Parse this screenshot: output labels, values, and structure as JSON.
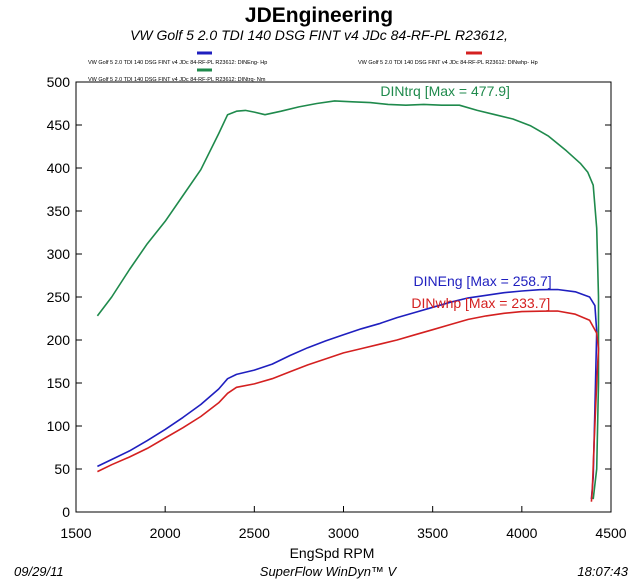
{
  "header": {
    "title": "JDEngineering",
    "subtitle": "VW Golf 5  2.0 TDI 140   DSG   FINT v4   JDc     84-RF-PL    R23612,"
  },
  "legend": [
    {
      "text": "VW Golf 5  2.0 TDI 140   DSG   FINT v4   JDc      84-RF-PL    R23612: DINEng- Hp",
      "color": "#1f1fbf"
    },
    {
      "text": "VW Golf 5  2.0 TDI 140   DSG   FINT v4   JDc      84-RF-PL    R23612: DINwhp- Hp",
      "color": "#d42020"
    },
    {
      "text": "VW Golf 5  2.0 TDI 140   DSG   FINT v4   JDc      84-RF-PL    R23612: DINtrq- Nm",
      "color": "#1f8a4c"
    }
  ],
  "footer": {
    "date": "09/29/11",
    "software": "SuperFlow WinDyn™ V",
    "time": "18:07:43"
  },
  "chart_data": {
    "type": "line",
    "xlabel": "EngSpd  RPM",
    "ylabel": "",
    "xlim": [
      1500,
      4500
    ],
    "ylim": [
      0,
      500
    ],
    "x_ticks": [
      "1500",
      "2000",
      "2500",
      "3000",
      "3500",
      "4000",
      "4500"
    ],
    "y_ticks": [
      "0",
      "50",
      "100",
      "150",
      "200",
      "250",
      "300",
      "350",
      "400",
      "450",
      "500"
    ],
    "grid": false,
    "series": [
      {
        "name": "DINtrq",
        "annotation": "DINtrq [Max = 477.9]",
        "color": "#1f8a4c",
        "points": [
          [
            1620,
            228
          ],
          [
            1700,
            250
          ],
          [
            1800,
            282
          ],
          [
            1900,
            312
          ],
          [
            2000,
            338
          ],
          [
            2100,
            368
          ],
          [
            2200,
            398
          ],
          [
            2300,
            440
          ],
          [
            2350,
            462
          ],
          [
            2400,
            466
          ],
          [
            2450,
            467
          ],
          [
            2500,
            465
          ],
          [
            2560,
            462
          ],
          [
            2650,
            466
          ],
          [
            2750,
            471
          ],
          [
            2850,
            475
          ],
          [
            2950,
            478
          ],
          [
            3050,
            477
          ],
          [
            3150,
            476
          ],
          [
            3250,
            474
          ],
          [
            3350,
            473
          ],
          [
            3450,
            474
          ],
          [
            3550,
            473
          ],
          [
            3650,
            473
          ],
          [
            3750,
            467
          ],
          [
            3850,
            462
          ],
          [
            3950,
            457
          ],
          [
            4050,
            449
          ],
          [
            4150,
            437
          ],
          [
            4250,
            420
          ],
          [
            4330,
            405
          ],
          [
            4370,
            395
          ],
          [
            4400,
            380
          ],
          [
            4420,
            330
          ],
          [
            4430,
            250
          ],
          [
            4430,
            150
          ],
          [
            4420,
            50
          ],
          [
            4400,
            15
          ]
        ]
      },
      {
        "name": "DINEng",
        "annotation": "DINEng [Max = 258.7]",
        "color": "#1f1fbf",
        "points": [
          [
            1620,
            53
          ],
          [
            1700,
            61
          ],
          [
            1800,
            71
          ],
          [
            1900,
            83
          ],
          [
            2000,
            96
          ],
          [
            2100,
            110
          ],
          [
            2200,
            125
          ],
          [
            2300,
            143
          ],
          [
            2350,
            155
          ],
          [
            2400,
            160
          ],
          [
            2500,
            165
          ],
          [
            2600,
            172
          ],
          [
            2700,
            182
          ],
          [
            2800,
            191
          ],
          [
            2900,
            199
          ],
          [
            3000,
            206
          ],
          [
            3100,
            213
          ],
          [
            3200,
            219
          ],
          [
            3300,
            226
          ],
          [
            3400,
            232
          ],
          [
            3500,
            238
          ],
          [
            3600,
            244
          ],
          [
            3700,
            249
          ],
          [
            3800,
            252
          ],
          [
            3900,
            255
          ],
          [
            4000,
            257
          ],
          [
            4100,
            258.5
          ],
          [
            4200,
            258.7
          ],
          [
            4300,
            256
          ],
          [
            4380,
            250
          ],
          [
            4410,
            240
          ],
          [
            4420,
            210
          ],
          [
            4410,
            120
          ],
          [
            4400,
            40
          ],
          [
            4390,
            15
          ]
        ]
      },
      {
        "name": "DINwhp",
        "annotation": "DINwhp [Max = 233.7]",
        "color": "#d42020",
        "points": [
          [
            1620,
            47
          ],
          [
            1700,
            55
          ],
          [
            1800,
            64
          ],
          [
            1900,
            74
          ],
          [
            2000,
            86
          ],
          [
            2100,
            98
          ],
          [
            2200,
            111
          ],
          [
            2300,
            127
          ],
          [
            2350,
            138
          ],
          [
            2400,
            145
          ],
          [
            2500,
            149
          ],
          [
            2600,
            155
          ],
          [
            2700,
            163
          ],
          [
            2800,
            171
          ],
          [
            2900,
            178
          ],
          [
            3000,
            185
          ],
          [
            3100,
            190
          ],
          [
            3200,
            195
          ],
          [
            3300,
            200
          ],
          [
            3400,
            206
          ],
          [
            3500,
            212
          ],
          [
            3600,
            218
          ],
          [
            3700,
            224
          ],
          [
            3800,
            228
          ],
          [
            3900,
            231
          ],
          [
            4000,
            233
          ],
          [
            4100,
            233.5
          ],
          [
            4200,
            233.7
          ],
          [
            4300,
            230
          ],
          [
            4380,
            223
          ],
          [
            4420,
            208
          ],
          [
            4430,
            190
          ],
          [
            4420,
            150
          ],
          [
            4405,
            80
          ],
          [
            4395,
            25
          ],
          [
            4390,
            12
          ]
        ]
      }
    ]
  }
}
